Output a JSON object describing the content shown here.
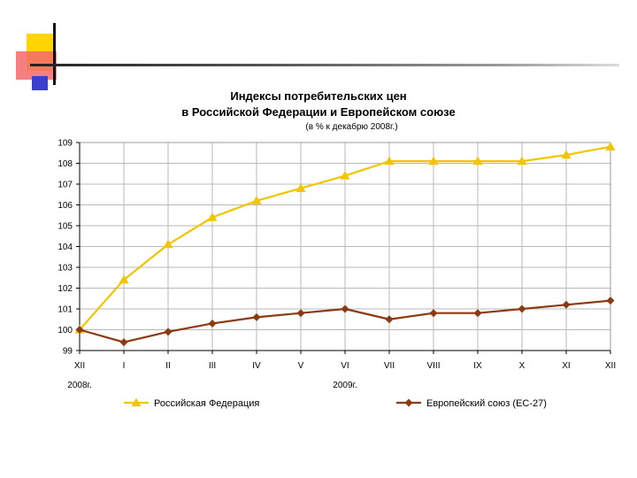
{
  "colors": {
    "ru": "#F2C500",
    "eu": "#8B3A12",
    "deco_yellow": "#FFD400",
    "deco_red": "#F26A6A",
    "deco_blue": "#3A3FD0",
    "deco_line": "#555555",
    "grid": "#B8B8B8"
  },
  "chart_data": {
    "type": "line",
    "title": "Индексы потребительских цен",
    "title_line2": "в Российской Федерации и Европейском союзе",
    "subtitle": "(в % к декабрю 2008г.)",
    "categories": [
      "XII",
      "I",
      "II",
      "III",
      "IV",
      "V",
      "VI",
      "VII",
      "VIII",
      "IX",
      "X",
      "XI",
      "XII"
    ],
    "year_labels": [
      {
        "label": "2008г.",
        "category_index": 0
      },
      {
        "label": "2009г.",
        "category_index": 6
      }
    ],
    "ylim": [
      99,
      109
    ],
    "yticks": [
      99,
      100,
      101,
      102,
      103,
      104,
      105,
      106,
      107,
      108,
      109
    ],
    "grid": true,
    "legend": "bottom",
    "series": [
      {
        "name": "Российская Федерация",
        "marker": "triangle",
        "color_key": "ru",
        "values": [
          100.0,
          102.4,
          104.1,
          105.4,
          106.2,
          106.8,
          107.4,
          108.1,
          108.1,
          108.1,
          108.1,
          108.4,
          108.8
        ]
      },
      {
        "name": "Европейский союз (ЕС-27)",
        "marker": "diamond",
        "color_key": "eu",
        "values": [
          100.0,
          99.4,
          99.9,
          100.3,
          100.6,
          100.8,
          101.0,
          100.5,
          100.8,
          100.8,
          101.0,
          101.2,
          101.4
        ]
      }
    ]
  }
}
